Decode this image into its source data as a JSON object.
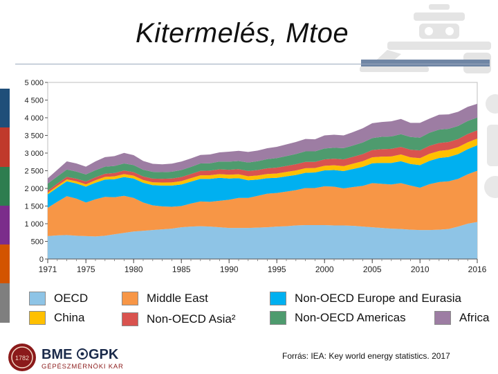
{
  "slide": {
    "title": "Kitermelés, Mtoe",
    "source": "Forrás: IEA: Key world energy statistics. 2017"
  },
  "logo": {
    "name_left": "BME",
    "name_right": "GPK",
    "subtitle": "GÉPÉSZMÉRNÖKI KAR",
    "seal_text": "1782"
  },
  "colors": {
    "accent_bar": "#7086a5",
    "stripes": [
      "#1f4e79",
      "#c0392b",
      "#2e7d4f",
      "#7b2d8b",
      "#d35400",
      "#7f7f7f"
    ]
  },
  "chart_data": {
    "type": "area",
    "stacked": true,
    "title": "",
    "xlabel": "",
    "ylabel": "",
    "x": [
      1971,
      1972,
      1973,
      1974,
      1975,
      1976,
      1977,
      1978,
      1979,
      1980,
      1981,
      1982,
      1983,
      1984,
      1985,
      1986,
      1987,
      1988,
      1989,
      1990,
      1991,
      1992,
      1993,
      1994,
      1995,
      1996,
      1997,
      1998,
      1999,
      2000,
      2001,
      2002,
      2003,
      2004,
      2005,
      2006,
      2007,
      2008,
      2009,
      2010,
      2011,
      2012,
      2013,
      2014,
      2015,
      2016
    ],
    "xticks": [
      "1971",
      "1975",
      "1980",
      "1985",
      "1990",
      "1995",
      "2000",
      "2005",
      "2010",
      "2016"
    ],
    "xtick_values": [
      1971,
      1975,
      1980,
      1985,
      1990,
      1995,
      2000,
      2005,
      2010,
      2016
    ],
    "ylim": [
      0,
      5000
    ],
    "yticks": [
      "0",
      "500",
      "1 000",
      "1 500",
      "2 000",
      "2 500",
      "3 000",
      "3 500",
      "4 000",
      "4 500",
      "5 000"
    ],
    "ytick_values": [
      0,
      500,
      1000,
      1500,
      2000,
      2500,
      3000,
      3500,
      4000,
      4500,
      5000
    ],
    "series": [
      {
        "name": "OECD",
        "color": "#8ec4e6",
        "values": [
          650,
          670,
          680,
          660,
          650,
          640,
          660,
          700,
          740,
          780,
          800,
          820,
          840,
          860,
          900,
          920,
          930,
          920,
          900,
          880,
          880,
          880,
          890,
          900,
          920,
          930,
          950,
          960,
          960,
          960,
          950,
          950,
          940,
          920,
          900,
          880,
          860,
          850,
          830,
          820,
          820,
          830,
          850,
          920,
          1000,
          1050
        ]
      },
      {
        "name": "Middle East",
        "color": "#f79646",
        "values": [
          800,
          950,
          1100,
          1050,
          950,
          1050,
          1100,
          1050,
          1050,
          950,
          800,
          700,
          650,
          620,
          600,
          650,
          700,
          700,
          750,
          800,
          850,
          850,
          900,
          950,
          950,
          980,
          1000,
          1050,
          1050,
          1100,
          1100,
          1050,
          1100,
          1150,
          1250,
          1250,
          1250,
          1300,
          1250,
          1200,
          1300,
          1350,
          1350,
          1350,
          1400,
          1450
        ]
      },
      {
        "name": "Non-OECD Europe and Eurasia",
        "color": "#00b0f0",
        "values": [
          380,
          400,
          420,
          430,
          450,
          470,
          490,
          510,
          530,
          550,
          560,
          570,
          590,
          600,
          610,
          620,
          640,
          650,
          650,
          600,
          560,
          500,
          460,
          440,
          430,
          430,
          430,
          430,
          440,
          450,
          470,
          490,
          510,
          540,
          560,
          590,
          610,
          620,
          610,
          640,
          660,
          680,
          690,
          700,
          710,
          720
        ]
      },
      {
        "name": "China",
        "color": "#ffc000",
        "values": [
          45,
          50,
          55,
          60,
          65,
          70,
          75,
          80,
          85,
          80,
          78,
          82,
          86,
          90,
          95,
          98,
          100,
          102,
          105,
          108,
          110,
          112,
          115,
          118,
          122,
          125,
          128,
          130,
          125,
          130,
          135,
          140,
          150,
          160,
          170,
          180,
          185,
          190,
          190,
          195,
          200,
          200,
          200,
          198,
          195,
          190
        ]
      },
      {
        "name": "Non-OECD Asia²",
        "color": "#d9534f",
        "values": [
          60,
          65,
          70,
          75,
          80,
          85,
          90,
          95,
          100,
          100,
          100,
          105,
          105,
          110,
          115,
          120,
          125,
          130,
          135,
          140,
          145,
          150,
          155,
          160,
          165,
          170,
          175,
          180,
          175,
          180,
          185,
          190,
          195,
          200,
          205,
          210,
          215,
          215,
          215,
          220,
          225,
          225,
          225,
          230,
          235,
          235
        ]
      },
      {
        "name": "Non-OECD Americas",
        "color": "#4e9b6e",
        "values": [
          200,
          200,
          210,
          200,
          200,
          200,
          200,
          200,
          200,
          200,
          190,
          190,
          190,
          190,
          200,
          200,
          210,
          210,
          220,
          230,
          230,
          240,
          250,
          260,
          270,
          280,
          290,
          300,
          300,
          310,
          310,
          320,
          320,
          330,
          340,
          350,
          350,
          360,
          360,
          360,
          370,
          380,
          370,
          370,
          370,
          360
        ]
      },
      {
        "name": "Africa",
        "color": "#9d7da3",
        "values": [
          150,
          190,
          230,
          230,
          220,
          250,
          270,
          280,
          300,
          280,
          250,
          230,
          220,
          230,
          240,
          240,
          240,
          250,
          260,
          280,
          290,
          300,
          300,
          310,
          320,
          330,
          340,
          350,
          340,
          370,
          370,
          360,
          380,
          400,
          420,
          420,
          430,
          430,
          400,
          420,
          400,
          420,
          410,
          400,
          400,
          390
        ]
      }
    ]
  },
  "legend": [
    {
      "label": "OECD",
      "color": "#8ec4e6"
    },
    {
      "label": "China",
      "color": "#ffc000"
    },
    {
      "label": "Middle East",
      "color": "#f79646"
    },
    {
      "label": "Non-OECD Asia²",
      "color": "#d9534f"
    },
    {
      "label": "Non-OECD Europe and Eurasia",
      "color": "#00b0f0"
    },
    {
      "label": "Non-OECD Americas",
      "color": "#4e9b6e"
    },
    {
      "label": "Africa",
      "color": "#9d7da3"
    }
  ]
}
